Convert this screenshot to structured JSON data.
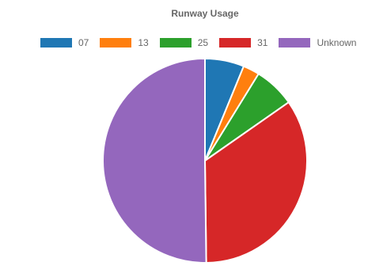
{
  "chart_data": {
    "type": "pie",
    "title": "Runway Usage",
    "legend_position": "top",
    "categories": [
      "07",
      "13",
      "25",
      "31",
      "Unknown"
    ],
    "values": [
      6.2,
      2.6,
      6.5,
      34.5,
      50.2
    ],
    "colors": [
      "#1f77b4",
      "#ff7f0e",
      "#2ca02c",
      "#d62728",
      "#9467bd"
    ]
  }
}
